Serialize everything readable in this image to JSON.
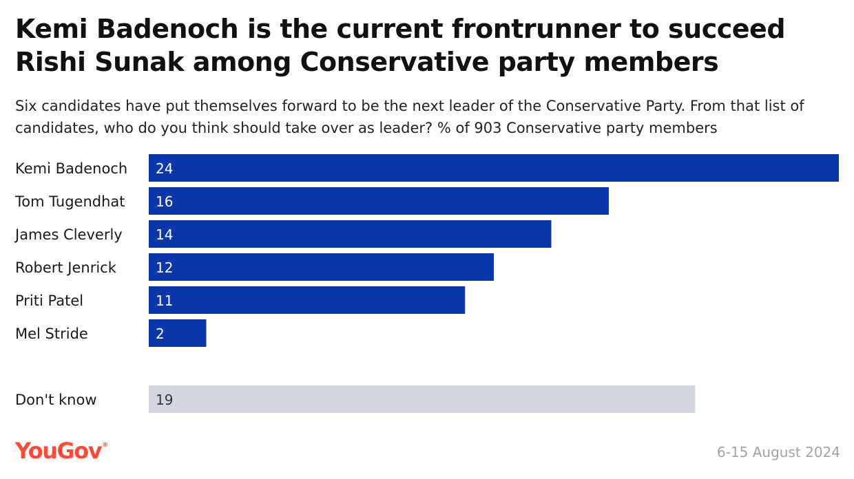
{
  "chart_data": {
    "type": "bar",
    "orientation": "horizontal",
    "title": "Kemi Badenoch is the current frontrunner to succeed Rishi Sunak among Conservative party members",
    "subtitle": "Six candidates have put themselves forward to be the next leader of the Conservative Party. From that list of candidates, who do you think should take over as leader? % of 903 Conservative party members",
    "categories": [
      "Kemi Badenoch",
      "Tom Tugendhat",
      "James Cleverly",
      "Robert Jenrick",
      "Priti Patel",
      "Mel Stride",
      "Don't know"
    ],
    "values": [
      24,
      16,
      14,
      12,
      11,
      2,
      19
    ],
    "unit": "%",
    "xlim": [
      0,
      24
    ],
    "grid": false,
    "legend": "none",
    "bar_colors": [
      "#0b37aa",
      "#0b37aa",
      "#0b37aa",
      "#0b37aa",
      "#0b37aa",
      "#0b37aa",
      "#d3d6e0"
    ],
    "label_colors": [
      "#ffffff",
      "#ffffff",
      "#ffffff",
      "#ffffff",
      "#ffffff",
      "#ffffff",
      "#333333"
    ]
  },
  "footer": {
    "brand": "YouGov",
    "brand_mark": "®",
    "brand_color": "#ff4b37",
    "date": "6-15 August 2024"
  }
}
